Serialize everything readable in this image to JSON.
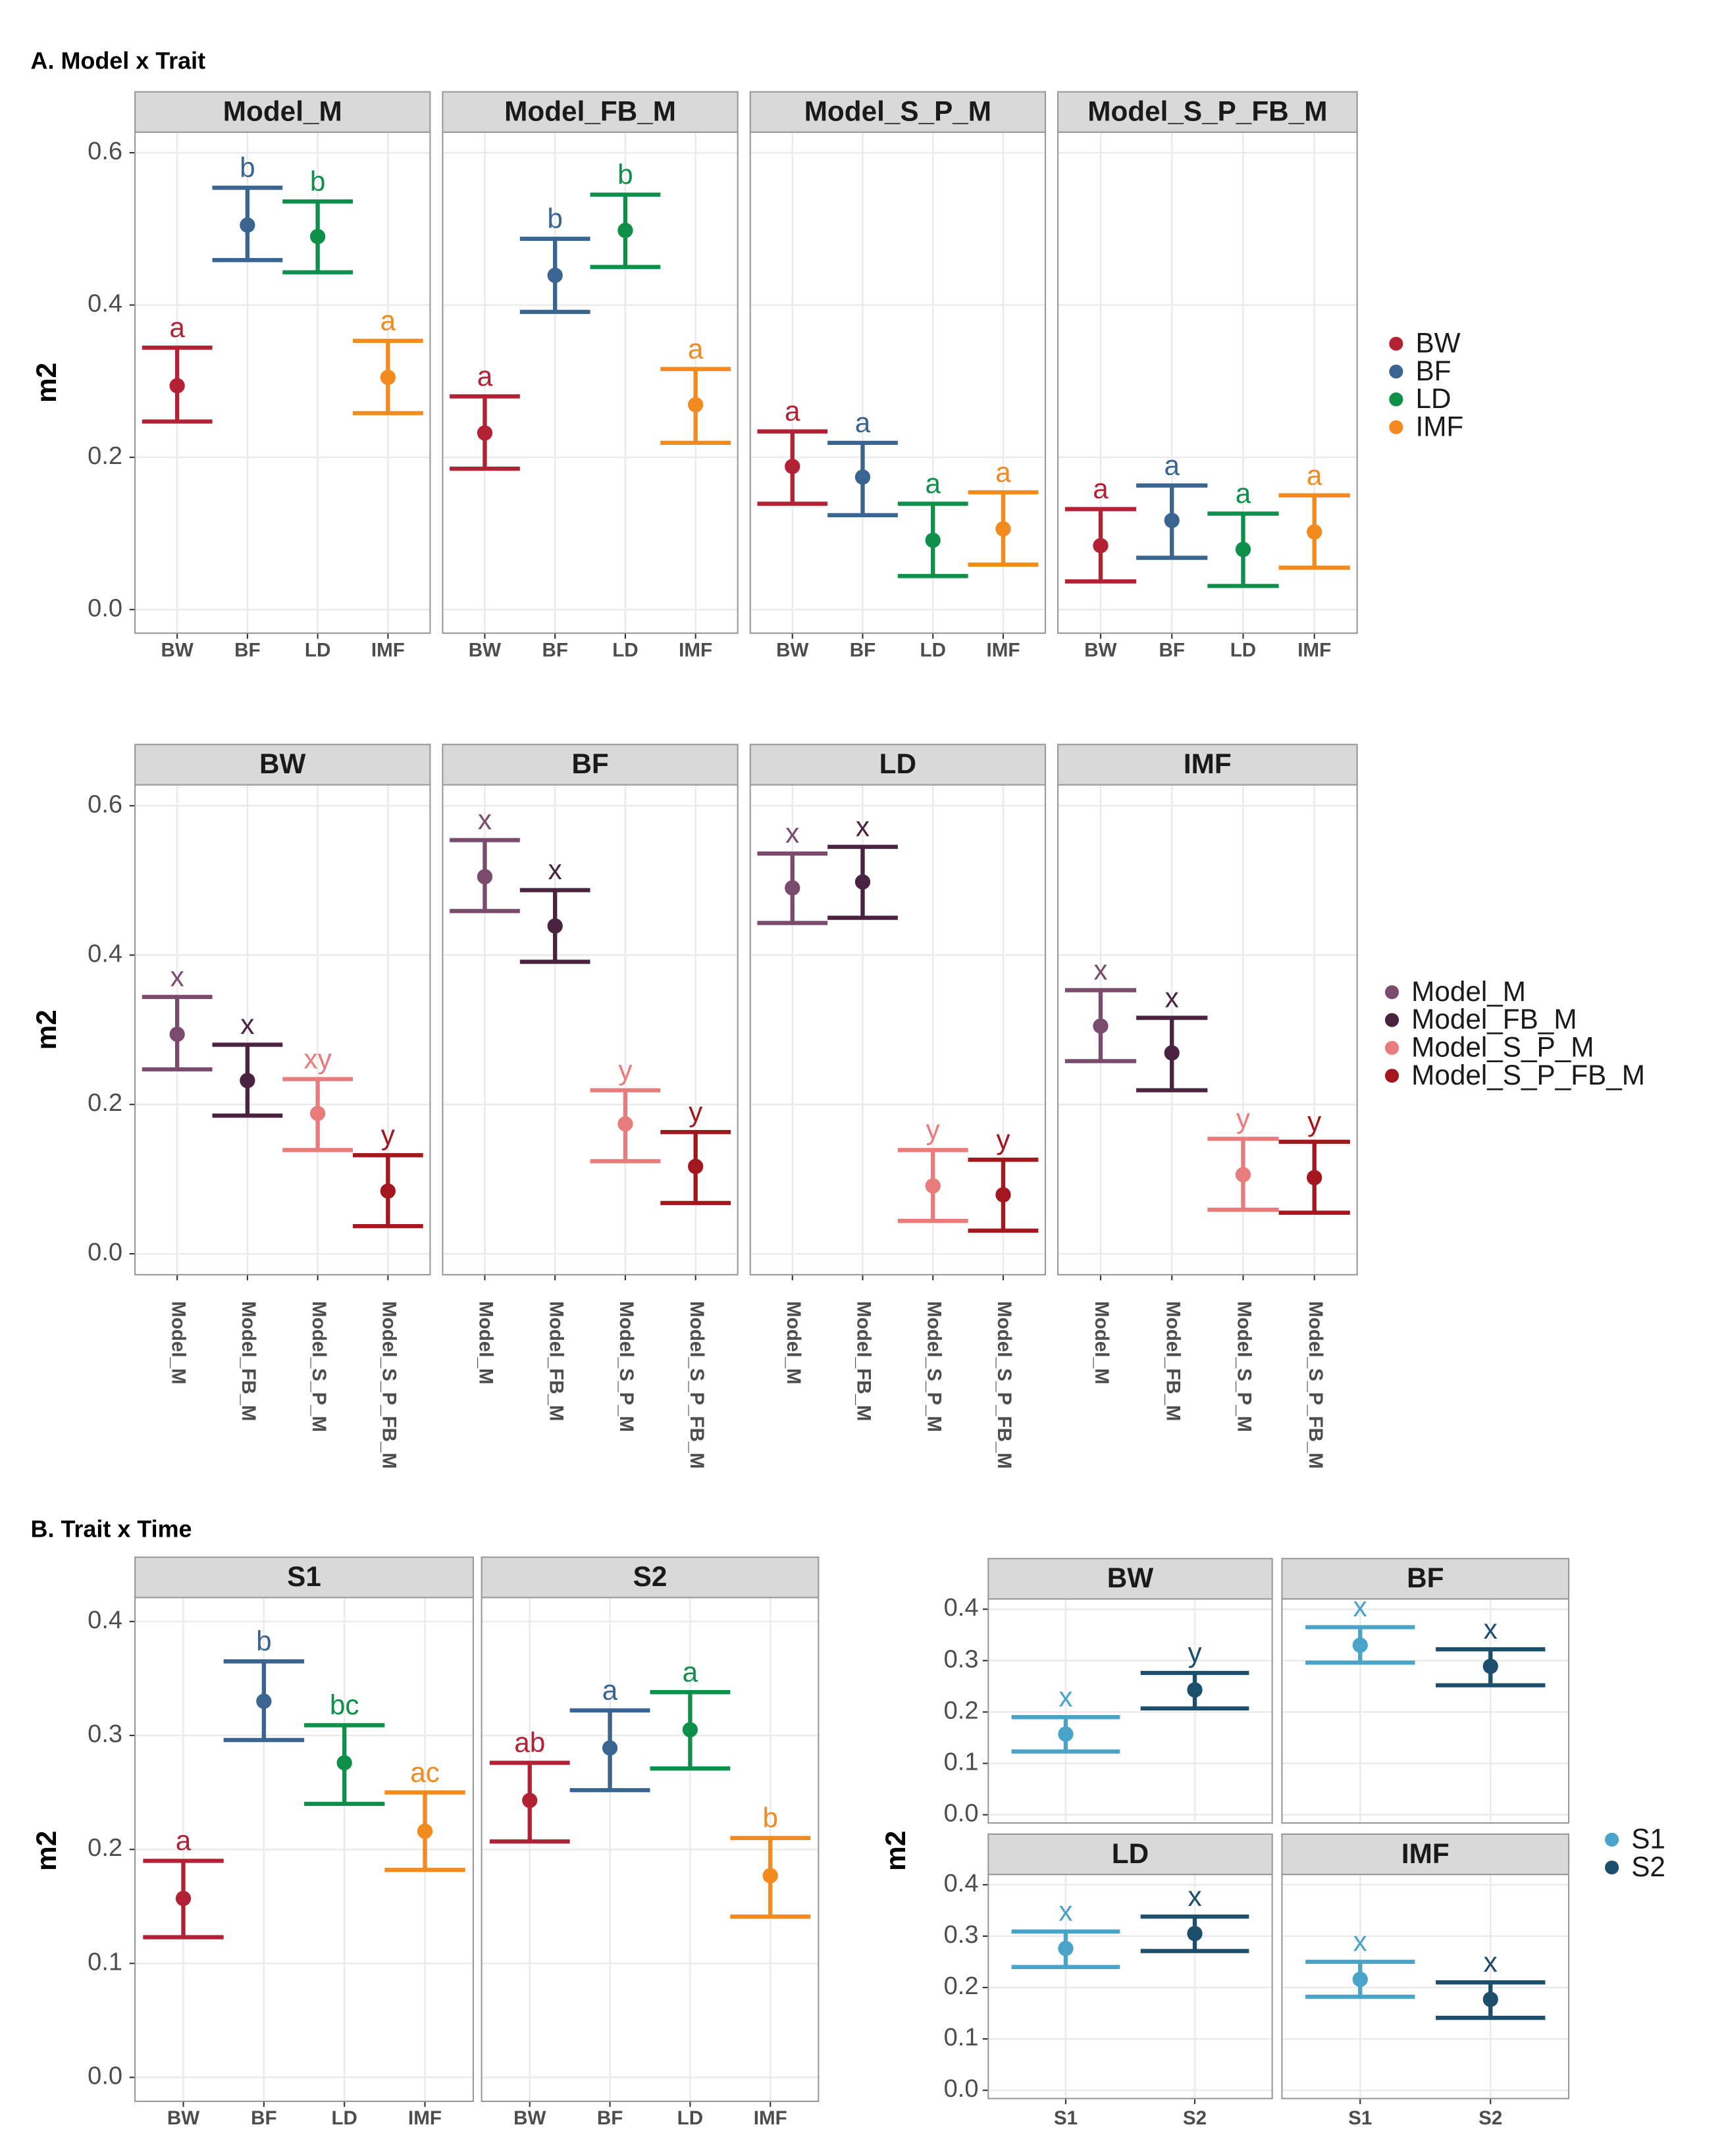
{
  "chart_data": [
    {
      "type": "errorbar",
      "title": "A. Model x Trait",
      "ylabel": "m2",
      "columns": 4,
      "legend": true,
      "grid": true,
      "categories": [
        "BW",
        "BF",
        "LD",
        "IMF"
      ],
      "colors": [
        "#b22234",
        "#3a6591",
        "#0e8f4a",
        "#f28a1e"
      ],
      "ylim": [
        -0.031,
        0.627
      ],
      "yticks": [
        {
          "value": 0,
          "label": "0.0"
        },
        0.2,
        0.4,
        0.6
      ],
      "panels": [
        {
          "title": "Model_M",
          "values": [
            0.294,
            0.505,
            0.49,
            0.305
          ],
          "lower": [
            0.247,
            0.459,
            0.443,
            0.258
          ],
          "upper": [
            0.344,
            0.554,
            0.536,
            0.353
          ],
          "letters": [
            "a",
            "b",
            "b",
            "a"
          ]
        },
        {
          "title": "Model_FB_M",
          "values": [
            0.232,
            0.439,
            0.498,
            0.269
          ],
          "lower": [
            0.185,
            0.391,
            0.45,
            0.219
          ],
          "upper": [
            0.28,
            0.487,
            0.545,
            0.316
          ],
          "letters": [
            "a",
            "b",
            "b",
            "a"
          ]
        },
        {
          "title": "Model_S_P_M",
          "values": [
            0.188,
            0.174,
            0.091,
            0.106
          ],
          "lower": [
            0.139,
            0.124,
            0.044,
            0.059
          ],
          "upper": [
            0.234,
            0.219,
            0.139,
            0.154
          ],
          "letters": [
            "a",
            "a",
            "a",
            "a"
          ]
        },
        {
          "title": "Model_S_P_FB_M",
          "values": [
            0.084,
            0.117,
            0.079,
            0.102
          ],
          "lower": [
            0.037,
            0.068,
            0.031,
            0.055
          ],
          "upper": [
            0.132,
            0.163,
            0.126,
            0.15
          ],
          "letters": [
            "a",
            "a",
            "a",
            "a"
          ]
        }
      ]
    },
    {
      "type": "errorbar",
      "ylabel": "m2",
      "columns": 4,
      "legend": true,
      "grid": true,
      "x_label_rotation": 90,
      "categories": [
        "Model_M",
        "Model_FB_M",
        "Model_S_P_M",
        "Model_S_P_FB_M"
      ],
      "colors": [
        "#7b4b6e",
        "#4a2340",
        "#e87c7c",
        "#a3171f"
      ],
      "ylim": [
        -0.028,
        0.628
      ],
      "yticks": [
        {
          "value": 0,
          "label": "0.0"
        },
        0.2,
        0.4,
        0.6
      ],
      "panels": [
        {
          "title": "BW",
          "values": [
            0.294,
            0.232,
            0.188,
            0.084
          ],
          "lower": [
            0.247,
            0.185,
            0.139,
            0.037
          ],
          "upper": [
            0.344,
            0.28,
            0.234,
            0.132
          ],
          "letters": [
            "x",
            "x",
            "xy",
            "y"
          ]
        },
        {
          "title": "BF",
          "values": [
            0.505,
            0.439,
            0.174,
            0.117
          ],
          "lower": [
            0.459,
            0.391,
            0.124,
            0.068
          ],
          "upper": [
            0.554,
            0.487,
            0.219,
            0.163
          ],
          "letters": [
            "x",
            "x",
            "y",
            "y"
          ]
        },
        {
          "title": "LD",
          "values": [
            0.49,
            0.498,
            0.091,
            0.079
          ],
          "lower": [
            0.443,
            0.45,
            0.044,
            0.031
          ],
          "upper": [
            0.536,
            0.545,
            0.139,
            0.126
          ],
          "letters": [
            "x",
            "x",
            "y",
            "y"
          ]
        },
        {
          "title": "IMF",
          "values": [
            0.305,
            0.269,
            0.106,
            0.102
          ],
          "lower": [
            0.258,
            0.219,
            0.059,
            0.055
          ],
          "upper": [
            0.353,
            0.316,
            0.154,
            0.15
          ],
          "letters": [
            "x",
            "x",
            "y",
            "y"
          ]
        }
      ]
    },
    {
      "type": "errorbar",
      "title": "B. Trait x Time",
      "ylabel": "m2",
      "columns": 2,
      "legend": false,
      "grid": true,
      "categories": [
        "BW",
        "BF",
        "LD",
        "IMF"
      ],
      "colors": [
        "#b22234",
        "#3a6591",
        "#0e8f4a",
        "#f28a1e"
      ],
      "ylim": [
        -0.021,
        0.421
      ],
      "yticks": [
        {
          "value": 0,
          "label": "0.0"
        },
        0.1,
        0.2,
        0.3,
        0.4
      ],
      "panels": [
        {
          "title": "S1",
          "values": [
            0.157,
            0.33,
            0.276,
            0.216
          ],
          "lower": [
            0.123,
            0.296,
            0.24,
            0.182
          ],
          "upper": [
            0.19,
            0.365,
            0.309,
            0.25
          ],
          "letters": [
            "a",
            "b",
            "bc",
            "ac"
          ]
        },
        {
          "title": "S2",
          "values": [
            0.243,
            0.289,
            0.305,
            0.177
          ],
          "lower": [
            0.207,
            0.252,
            0.271,
            0.141
          ],
          "upper": [
            0.276,
            0.322,
            0.338,
            0.21
          ],
          "letters": [
            "ab",
            "a",
            "a",
            "b"
          ]
        }
      ]
    },
    {
      "type": "errorbar",
      "ylabel": "m2",
      "columns": 2,
      "legend": true,
      "grid": true,
      "categories": [
        "S1",
        "S2"
      ],
      "colors": [
        "#4aa3c8",
        "#1d4e6b"
      ],
      "ylim": [
        -0.016,
        0.42
      ],
      "yticks": [
        {
          "value": 0,
          "label": "0.0"
        },
        0.1,
        0.2,
        0.3,
        0.4
      ],
      "panels": [
        {
          "title": "BW",
          "values": [
            0.157,
            0.243
          ],
          "lower": [
            0.123,
            0.207
          ],
          "upper": [
            0.19,
            0.276
          ],
          "letters": [
            "x",
            "y"
          ]
        },
        {
          "title": "BF",
          "values": [
            0.33,
            0.289
          ],
          "lower": [
            0.296,
            0.252
          ],
          "upper": [
            0.365,
            0.322
          ],
          "letters": [
            "x",
            "x"
          ]
        },
        {
          "title": "LD",
          "values": [
            0.276,
            0.305
          ],
          "lower": [
            0.24,
            0.271
          ],
          "upper": [
            0.309,
            0.338
          ],
          "letters": [
            "x",
            "x"
          ]
        },
        {
          "title": "IMF",
          "values": [
            0.216,
            0.177
          ],
          "lower": [
            0.182,
            0.141
          ],
          "upper": [
            0.25,
            0.21
          ],
          "letters": [
            "x",
            "x"
          ]
        }
      ]
    }
  ]
}
